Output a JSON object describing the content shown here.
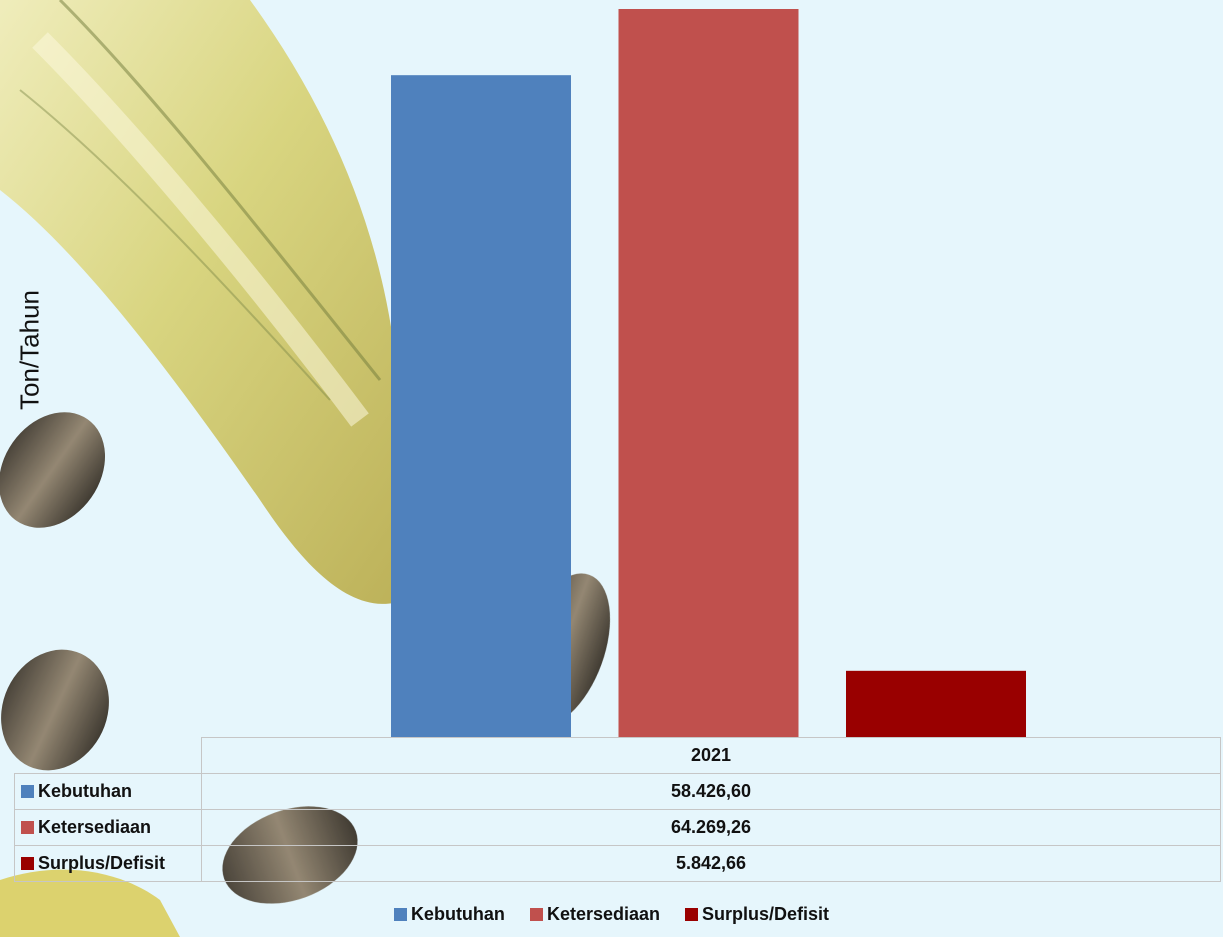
{
  "chart_data": {
    "type": "bar",
    "categories": [
      "2021"
    ],
    "series": [
      {
        "name": "Kebutuhan",
        "values": [
          58426.6
        ],
        "color": "#4f81bd",
        "label": "58.426,60"
      },
      {
        "name": "Ketersediaan",
        "values": [
          64269.26
        ],
        "color": "#c0504d",
        "label": "64.269,26"
      },
      {
        "name": "Surplus/Defisit",
        "values": [
          5842.66
        ],
        "color": "#990000",
        "label": "5.842,66"
      }
    ],
    "ylabel": "Ton/Tahun",
    "xlabel": "",
    "ylim": [
      0,
      65000
    ],
    "grid": false,
    "legend_position": "bottom",
    "data_table": true
  }
}
